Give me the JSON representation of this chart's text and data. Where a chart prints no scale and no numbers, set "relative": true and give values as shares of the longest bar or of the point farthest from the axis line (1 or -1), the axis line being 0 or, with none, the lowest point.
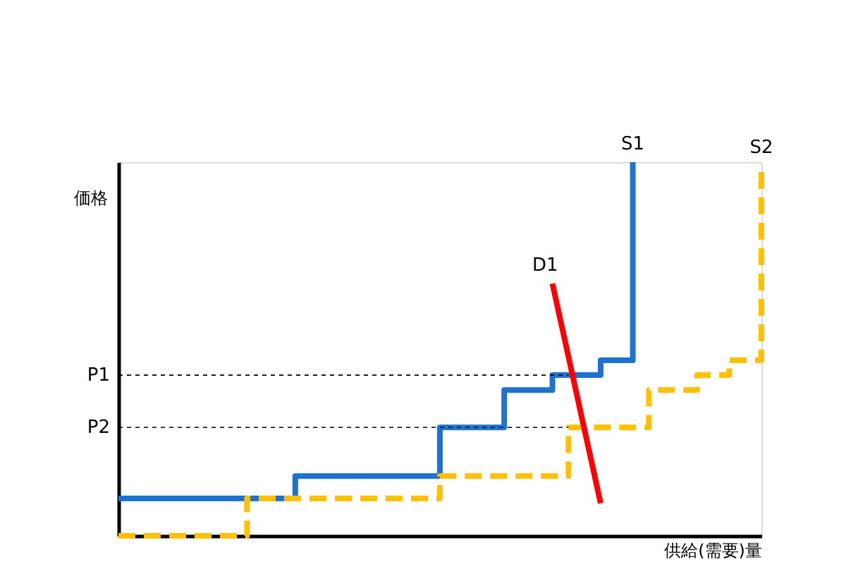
{
  "chart_data": {
    "type": "step",
    "relative": true,
    "xlabel": "供給(需要)量",
    "ylabel": "価格",
    "grid": false,
    "categories": [
      null,
      null,
      null,
      null,
      null,
      null,
      null,
      null,
      null,
      null,
      null,
      null,
      null,
      null,
      null,
      null,
      null,
      null,
      null,
      null,
      null,
      null,
      null,
      null,
      null,
      null,
      null,
      null,
      null,
      null,
      null,
      null,
      null,
      null,
      null,
      null,
      null,
      null,
      null,
      null,
      null
    ],
    "series": [
      {
        "name": "S1",
        "color": "#1e73cf",
        "line_style": "solid",
        "values": [
          0.1,
          0.1,
          0.1,
          0.1,
          0.1,
          0.1,
          0.1,
          0.1,
          0.1,
          0.1,
          0.1,
          0.16,
          0.16,
          0.16,
          0.16,
          0.16,
          0.16,
          0.16,
          0.16,
          0.16,
          0.29,
          0.29,
          0.29,
          0.29,
          0.39,
          0.39,
          0.39,
          0.43,
          0.43,
          0.43,
          0.47,
          0.47,
          1,
          null,
          null,
          null,
          null,
          null,
          null,
          null,
          null
        ]
      },
      {
        "name": "S2",
        "color": "#ffc000",
        "line_style": "dashed",
        "values": [
          0,
          0,
          0,
          0,
          0,
          0,
          0,
          0,
          0.1,
          0.1,
          0.1,
          0.1,
          0.1,
          0.1,
          0.1,
          0.1,
          0.1,
          0.1,
          0.1,
          0.1,
          0.16,
          0.16,
          0.16,
          0.16,
          0.16,
          0.16,
          0.16,
          0.16,
          0.29,
          0.29,
          0.29,
          0.29,
          0.29,
          0.39,
          0.39,
          0.39,
          0.43,
          0.43,
          0.47,
          0.47,
          0.99
        ]
      },
      {
        "name": "D1",
        "type": "line",
        "color": "#ff0000",
        "line_style": "solid",
        "values": [
          null,
          null,
          null,
          null,
          null,
          null,
          null,
          null,
          null,
          null,
          null,
          null,
          null,
          null,
          null,
          null,
          null,
          null,
          null,
          null,
          null,
          null,
          null,
          null,
          null,
          null,
          null,
          0.675,
          null,
          null,
          0.087,
          null,
          null,
          null,
          null,
          null,
          null,
          null,
          null,
          null,
          null
        ]
      }
    ],
    "ref_lines": [
      {
        "axis": "y",
        "value": 0.43,
        "label": "P1",
        "color": "#000000",
        "line_style": "dotted"
      },
      {
        "axis": "y",
        "value": 0.29,
        "label": "P2",
        "color": "#000000",
        "line_style": "dotted"
      }
    ]
  }
}
